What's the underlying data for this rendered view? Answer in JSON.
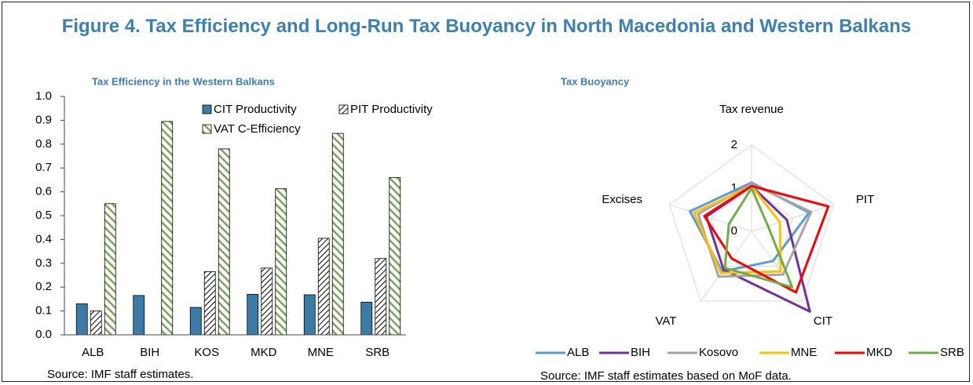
{
  "title": "Figure 4. Tax Efficiency and Long-Run Tax Buoyancy in North Macedonia and Western Balkans",
  "chart_data": [
    {
      "type": "bar",
      "title": "Tax Efficiency in the Western Balkans",
      "categories": [
        "ALB",
        "BIH",
        "KOS",
        "MKD",
        "MNE",
        "SRB"
      ],
      "series": [
        {
          "name": "CIT Productivity",
          "color": "#3a7ca5",
          "fill": "solid",
          "values": [
            0.13,
            0.165,
            0.115,
            0.17,
            0.168,
            0.137
          ]
        },
        {
          "name": "PIT Productivity",
          "color": "#000000",
          "fill": "hatch",
          "values": [
            0.1,
            null,
            0.265,
            0.28,
            0.405,
            0.32
          ]
        },
        {
          "name": "VAT C-Efficiency",
          "color": "#77a65b",
          "fill": "stripes",
          "values": [
            0.55,
            0.895,
            0.78,
            0.613,
            0.845,
            0.66
          ]
        }
      ],
      "ylim": [
        0,
        1
      ],
      "yticks": [
        {
          "value": 0,
          "label": "0.0"
        },
        0.1,
        0.2,
        0.3,
        0.4,
        0.5,
        0.6,
        0.7,
        0.8,
        0.9,
        {
          "value": 1,
          "label": "1.0"
        }
      ],
      "legend": "top-right",
      "source": "Source: IMF staff estimates."
    },
    {
      "type": "radar",
      "title": "Tax Buoyancy",
      "axes": [
        "Tax revenue",
        "PIT",
        "CIT",
        "VAT",
        "Excises"
      ],
      "series": [
        {
          "name": "ALB",
          "color": "#5b9bd5",
          "values": [
            1.13,
            1.4,
            0.85,
            1.15,
            1.5
          ]
        },
        {
          "name": "BIH",
          "color": "#7030a0",
          "values": [
            1.05,
            0.86,
            2.3,
            1.1,
            1.1
          ]
        },
        {
          "name": "Kosovo",
          "color": "#a5a5a5",
          "values": [
            1.1,
            1.45,
            1.24,
            1.3,
            1.3
          ]
        },
        {
          "name": "MNE",
          "color": "#ffc000",
          "values": [
            1.05,
            0.69,
            1.15,
            1.2,
            1.4
          ]
        },
        {
          "name": "MKD",
          "color": "#ff0000",
          "values": [
            1.05,
            1.87,
            1.75,
            0.78,
            1.15
          ]
        },
        {
          "name": "SRB",
          "color": "#70ad47",
          "values": [
            1.0,
            0.4,
            1.6,
            1.05,
            0.55
          ]
        }
      ],
      "ylim": [
        0,
        2
      ],
      "yticks": [
        0,
        1,
        2
      ],
      "legend": "bottom",
      "source": "Source: IMF staff estimates based on MoF data."
    }
  ]
}
